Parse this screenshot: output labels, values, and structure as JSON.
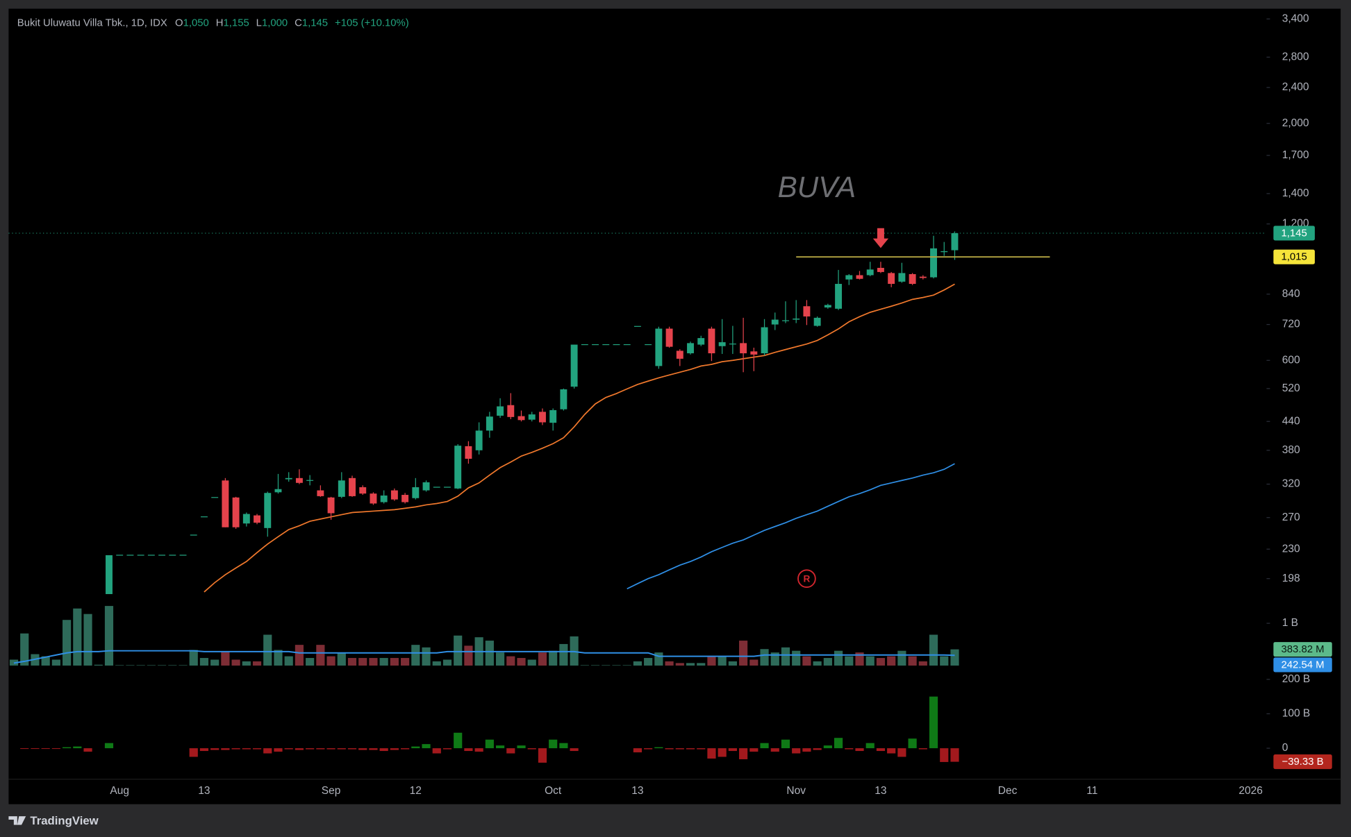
{
  "chart_data": {
    "type": "candlestick",
    "header": {
      "symbol": "Bukit Uluwatu Villa Tbk., 1D, IDX",
      "fields": [
        {
          "key": "O",
          "value": "1,050"
        },
        {
          "key": "H",
          "value": "1,155"
        },
        {
          "key": "L",
          "value": "1,000"
        },
        {
          "key": "C",
          "value": "1,145"
        }
      ],
      "change": "+105 (+10.10%)"
    },
    "watermark": "BUVA",
    "categories": [
      null,
      null,
      null,
      null,
      null,
      null,
      null,
      null,
      null,
      null,
      "Aug",
      null,
      null,
      null,
      null,
      null,
      null,
      null,
      "13",
      null,
      null,
      null,
      null,
      null,
      null,
      null,
      null,
      null,
      null,
      null,
      "Sep",
      null,
      null,
      null,
      null,
      null,
      null,
      null,
      "12",
      null,
      null,
      null,
      null,
      null,
      null,
      null,
      null,
      null,
      null,
      null,
      null,
      "Oct",
      null,
      null,
      null,
      null,
      null,
      null,
      null,
      "13",
      null,
      null,
      null,
      null,
      null,
      null,
      null,
      null,
      null,
      null,
      null,
      null,
      null,
      null,
      "Nov",
      null,
      null,
      null,
      null,
      null,
      null,
      null,
      "13",
      null,
      null,
      null,
      null,
      null,
      null,
      null,
      null,
      null,
      null,
      null,
      "Dec",
      null,
      null,
      null,
      null,
      null,
      null,
      null,
      "11",
      null,
      null,
      null,
      null,
      null,
      null,
      null,
      null,
      null,
      null,
      null,
      null,
      null,
      null,
      "2026",
      null
    ],
    "open": [
      null,
      null,
      null,
      null,
      null,
      null,
      null,
      null,
      null,
      160,
      223,
      223,
      223,
      223,
      223,
      223,
      223,
      247,
      271,
      299,
      326,
      299,
      262,
      273,
      256,
      307,
      328,
      330,
      325,
      310,
      299,
      300,
      330,
      315,
      305,
      292,
      310,
      303,
      298,
      310,
      315,
      315,
      313,
      388,
      380,
      420,
      453,
      478,
      452,
      444,
      462,
      437,
      468,
      525,
      650,
      650,
      650,
      650,
      650,
      713,
      650,
      583,
      705,
      630,
      622,
      650,
      705,
      645,
      650,
      655,
      628,
      622,
      720,
      732,
      738,
      790,
      715,
      785,
      780,
      905,
      925,
      925,
      960,
      935,
      895,
      930,
      918,
      915,
      1040,
      1050,
      null,
      null,
      null,
      null,
      null,
      null,
      null,
      null,
      null,
      null,
      null,
      null,
      null,
      null,
      null,
      null,
      null,
      null,
      null,
      null,
      null,
      null,
      null,
      null,
      null,
      null,
      null,
      null,
      null
    ],
    "high": [
      null,
      null,
      null,
      null,
      null,
      null,
      null,
      null,
      null,
      223,
      223,
      223,
      223,
      223,
      223,
      223,
      223,
      247,
      271,
      299,
      330,
      300,
      277,
      275,
      308,
      337,
      340,
      345,
      335,
      318,
      300,
      340,
      334,
      318,
      307,
      310,
      313,
      306,
      330,
      326,
      315,
      315,
      392,
      398,
      438,
      462,
      495,
      508,
      465,
      462,
      470,
      470,
      520,
      650,
      650,
      650,
      650,
      650,
      650,
      713,
      650,
      712,
      712,
      635,
      660,
      680,
      712,
      740,
      715,
      745,
      640,
      740,
      765,
      810,
      815,
      815,
      750,
      800,
      950,
      930,
      945,
      990,
      990,
      940,
      985,
      935,
      925,
      1130,
      1095,
      1155,
      null,
      null,
      null,
      null,
      null,
      null,
      null,
      null,
      null,
      null,
      null,
      null,
      null,
      null,
      null,
      null,
      null,
      null,
      null,
      null,
      null,
      null,
      null,
      null,
      null,
      null,
      null,
      null,
      null
    ],
    "low": [
      null,
      null,
      null,
      null,
      null,
      null,
      null,
      null,
      null,
      160,
      223,
      223,
      223,
      223,
      223,
      223,
      223,
      247,
      271,
      299,
      257,
      255,
      258,
      261,
      245,
      305,
      324,
      320,
      318,
      300,
      267,
      298,
      300,
      303,
      288,
      290,
      294,
      290,
      296,
      308,
      315,
      315,
      312,
      355,
      372,
      405,
      448,
      445,
      440,
      440,
      432,
      420,
      465,
      520,
      650,
      650,
      650,
      650,
      650,
      713,
      650,
      575,
      640,
      583,
      618,
      645,
      598,
      620,
      620,
      565,
      568,
      615,
      700,
      725,
      725,
      718,
      712,
      780,
      775,
      880,
      905,
      920,
      935,
      870,
      890,
      880,
      905,
      910,
      1020,
      1000,
      null,
      null,
      null,
      null,
      null,
      null,
      null,
      null,
      null,
      null,
      null,
      null,
      null,
      null,
      null,
      null,
      null,
      null,
      null,
      null,
      null,
      null,
      null,
      null,
      null,
      null,
      null,
      null,
      null
    ],
    "close": [
      null,
      null,
      null,
      null,
      null,
      null,
      null,
      null,
      null,
      223,
      223,
      223,
      223,
      223,
      223,
      223,
      223,
      247,
      271,
      299,
      257,
      257,
      275,
      263,
      306,
      312,
      330,
      322,
      326,
      301,
      276,
      326,
      301,
      305,
      290,
      302,
      296,
      292,
      315,
      323,
      315,
      315,
      389,
      364,
      420,
      451,
      475,
      450,
      443,
      456,
      438,
      466,
      518,
      650,
      650,
      650,
      650,
      650,
      650,
      713,
      650,
      705,
      643,
      605,
      655,
      672,
      622,
      658,
      652,
      622,
      618,
      710,
      738,
      734,
      742,
      750,
      745,
      795,
      885,
      925,
      908,
      952,
      940,
      885,
      935,
      885,
      912,
      1060,
      1045,
      1145,
      null,
      null,
      null,
      null,
      null,
      null,
      null,
      null,
      null,
      null,
      null,
      null,
      null,
      null,
      null,
      null,
      null,
      null,
      null,
      null,
      null,
      null,
      null,
      null,
      null,
      null,
      null,
      null,
      null
    ],
    "up_color": "#22a37f",
    "down_color": "#e5434c",
    "log_scale": true,
    "ylim": [
      183,
      3550
    ],
    "yticks": [
      198,
      230,
      270,
      320,
      380,
      440,
      520,
      600,
      720,
      840,
      {
        "value": 1200,
        "label": "1,200"
      },
      {
        "value": 1400,
        "label": "1,400"
      },
      {
        "value": 1700,
        "label": "1,700"
      },
      {
        "value": 2000,
        "label": "2,000"
      },
      {
        "value": 2400,
        "label": "2,400"
      },
      {
        "value": 2800,
        "label": "2,800"
      },
      {
        "value": 3400,
        "label": "3,400"
      }
    ],
    "lines": [
      {
        "color": "#f0782c",
        "values": [
          null,
          null,
          null,
          null,
          null,
          null,
          null,
          null,
          null,
          null,
          null,
          null,
          null,
          null,
          null,
          null,
          null,
          null,
          185,
          194,
          202,
          209,
          216,
          226,
          236,
          245,
          254,
          259,
          265,
          268,
          271,
          274,
          277,
          278,
          279,
          280,
          281,
          283,
          285,
          288,
          290,
          293,
          301,
          314,
          322,
          335,
          348,
          358,
          369,
          376,
          384,
          393,
          405,
          428,
          456,
          481,
          497,
          507,
          519,
          531,
          540,
          549,
          557,
          565,
          573,
          583,
          588,
          596,
          600,
          605,
          610,
          615,
          625,
          634,
          643,
          652,
          664,
          683,
          704,
          730,
          749,
          766,
          778,
          790,
          803,
          818,
          826,
          836,
          858,
          884,
          null,
          null,
          null,
          null,
          null,
          null,
          null,
          null,
          null,
          null,
          null,
          null,
          null,
          null,
          null,
          null,
          null,
          null,
          null,
          null,
          null,
          null,
          null,
          null,
          null,
          null,
          null,
          null,
          null
        ]
      },
      {
        "color": "#2f8fe6",
        "values": [
          null,
          null,
          null,
          null,
          null,
          null,
          null,
          null,
          null,
          null,
          null,
          null,
          null,
          null,
          null,
          null,
          null,
          null,
          null,
          null,
          null,
          null,
          null,
          null,
          null,
          null,
          null,
          null,
          null,
          null,
          null,
          null,
          null,
          null,
          null,
          null,
          null,
          null,
          null,
          null,
          null,
          null,
          null,
          null,
          null,
          null,
          null,
          null,
          null,
          null,
          null,
          null,
          null,
          null,
          null,
          null,
          null,
          null,
          188,
          193,
          198,
          202,
          207,
          212,
          216,
          221,
          227,
          232,
          237,
          241,
          247,
          253,
          258,
          263,
          269,
          274,
          279,
          286,
          293,
          300,
          305,
          311,
          318,
          322,
          326,
          330,
          335,
          339,
          345,
          355,
          null,
          null,
          null,
          null,
          null,
          null,
          null,
          null,
          null,
          null,
          null,
          null,
          null,
          null,
          null,
          null,
          null,
          null,
          null,
          null,
          null,
          null,
          null,
          null,
          null,
          null,
          null,
          null,
          null
        ]
      }
    ],
    "last_price": {
      "value": 1145,
      "label": "1,145"
    },
    "level_line": {
      "value": 1015,
      "label": "1,015",
      "color": "#b5a642",
      "label_color": "#f5e43a",
      "span": [
        74,
        98
      ]
    },
    "arrow": {
      "index": 82,
      "value": 1062,
      "color": "#e5434c"
    },
    "marker": {
      "text": "R",
      "index": 75,
      "value": 198,
      "color": "#d3262e"
    },
    "volume": {
      "values": [
        0.14,
        0.76,
        0.27,
        0.22,
        0.14,
        1.08,
        1.35,
        1.22,
        0.02,
        1.41,
        0.01,
        0.01,
        0.01,
        0.01,
        0.01,
        0.01,
        0.01,
        0.37,
        0.18,
        0.14,
        0.33,
        0.14,
        0.1,
        0.1,
        0.73,
        0.37,
        0.22,
        0.49,
        0.18,
        0.49,
        0.22,
        0.31,
        0.18,
        0.18,
        0.18,
        0.18,
        0.18,
        0.18,
        0.49,
        0.43,
        0.1,
        0.14,
        0.71,
        0.47,
        0.67,
        0.59,
        0.31,
        0.22,
        0.18,
        0.14,
        0.31,
        0.35,
        0.51,
        0.69,
        0.01,
        0.01,
        0.01,
        0.01,
        0.01,
        0.1,
        0.18,
        0.31,
        0.1,
        0.06,
        0.06,
        0.06,
        0.22,
        0.22,
        0.1,
        0.59,
        0.14,
        0.39,
        0.31,
        0.43,
        0.35,
        0.22,
        0.1,
        0.18,
        0.35,
        0.22,
        0.31,
        0.22,
        0.18,
        0.22,
        0.35,
        0.22,
        0.1,
        0.73,
        0.22,
        0.38382,
        null,
        null,
        null,
        null,
        null,
        null,
        null,
        null,
        null,
        null,
        null,
        null,
        null,
        null,
        null,
        null,
        null,
        null,
        null,
        null,
        null,
        null,
        null,
        null,
        null,
        null,
        null,
        null,
        null
      ],
      "up_color": "#2e6b5a",
      "down_color": "#7d2d35",
      "ylim": [
        0,
        1.69
      ],
      "yticks": [
        {
          "value": 1,
          "label": "1 B"
        }
      ],
      "last_label": {
        "value": 0.38382,
        "label": "383.82 M"
      },
      "label_color": "#5cba8a",
      "ma": {
        "color": "#2f8fe6",
        "values": [
          0.06,
          0.1,
          0.15,
          0.2,
          0.25,
          0.3,
          0.33,
          0.33,
          0.33,
          0.35,
          0.35,
          0.35,
          0.35,
          0.35,
          0.35,
          0.35,
          0.35,
          0.35,
          0.33,
          0.33,
          0.33,
          0.33,
          0.33,
          0.33,
          0.33,
          0.33,
          0.33,
          0.3,
          0.3,
          0.3,
          0.3,
          0.3,
          0.3,
          0.3,
          0.3,
          0.3,
          0.3,
          0.3,
          0.3,
          0.3,
          0.3,
          0.33,
          0.33,
          0.33,
          0.33,
          0.33,
          0.33,
          0.33,
          0.33,
          0.33,
          0.33,
          0.33,
          0.33,
          0.33,
          0.3,
          0.3,
          0.3,
          0.3,
          0.3,
          0.3,
          0.3,
          0.22,
          0.22,
          0.22,
          0.22,
          0.22,
          0.22,
          0.22,
          0.22,
          0.22,
          0.22,
          0.25,
          0.25,
          0.25,
          0.25,
          0.25,
          0.25,
          0.25,
          0.25,
          0.25,
          0.25,
          0.25,
          0.25,
          0.25,
          0.25,
          0.25,
          0.25,
          0.25,
          0.25,
          0.24254,
          null,
          null,
          null,
          null,
          null,
          null,
          null,
          null,
          null,
          null,
          null,
          null,
          null,
          null,
          null,
          null,
          null,
          null,
          null,
          null,
          null,
          null,
          null,
          null,
          null,
          null,
          null,
          null,
          null
        ],
        "last_label": {
          "value": 0.24254,
          "label": "242.54 M"
        }
      }
    },
    "indicator": {
      "values": [
        0,
        -2,
        -2,
        -2,
        -2,
        3,
        5,
        -10,
        0,
        15,
        0,
        0,
        0,
        0,
        0,
        0,
        0,
        -25,
        -8,
        -5,
        -5,
        -3,
        -3,
        -3,
        -15,
        -10,
        -3,
        -5,
        -3,
        -3,
        -3,
        -3,
        -3,
        -5,
        -5,
        -8,
        -5,
        -3,
        5,
        12,
        -15,
        -3,
        45,
        -8,
        -10,
        25,
        8,
        -15,
        8,
        -3,
        -42,
        25,
        15,
        -8,
        0,
        0,
        0,
        0,
        0,
        -12,
        -3,
        3,
        -3,
        -3,
        -3,
        -3,
        -30,
        -25,
        -8,
        -32,
        -10,
        15,
        -10,
        25,
        -15,
        -10,
        -5,
        8,
        30,
        -3,
        -8,
        15,
        -8,
        -15,
        -25,
        28,
        -3,
        150,
        -40,
        -39.33,
        null,
        null,
        null,
        null,
        null,
        null,
        null,
        null,
        null,
        null,
        null,
        null,
        null,
        null,
        null,
        null,
        null,
        null,
        null,
        null,
        null,
        null,
        null,
        null,
        null,
        null,
        null,
        null,
        null
      ],
      "up_color": "#0f7a16",
      "down_color": "#a3191d",
      "ylim": [
        -90,
        227.5
      ],
      "yticks": [
        0,
        {
          "value": 100,
          "label": "100 B"
        },
        {
          "value": 200,
          "label": "200 B"
        }
      ],
      "last_label": {
        "value": -39.33,
        "label": "−39.33 B"
      },
      "label_color": "#b3261e"
    }
  },
  "footer": {
    "brand": "TradingView"
  }
}
